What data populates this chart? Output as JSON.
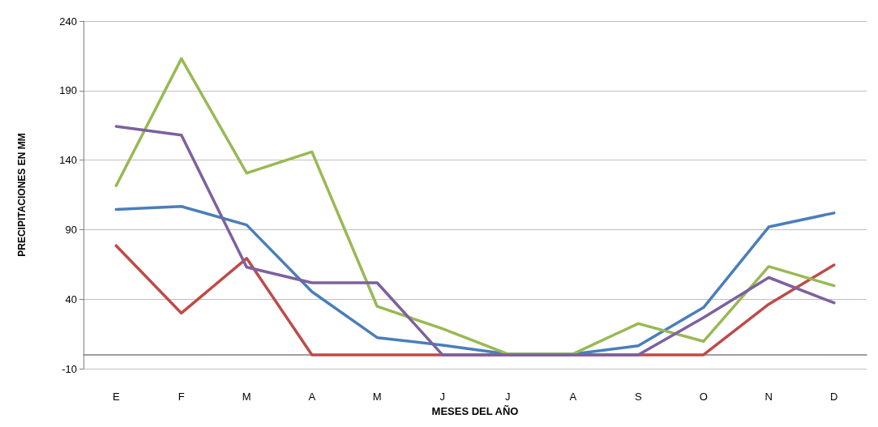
{
  "chart_data": {
    "type": "line",
    "xlabel": "MESES DEL AÑO",
    "ylabel": "PRECIPITACIONES EN MM",
    "categories": [
      "E",
      "F",
      "M",
      "A",
      "M",
      "J",
      "J",
      "A",
      "S",
      "O",
      "N",
      "D"
    ],
    "series": [
      {
        "color": "#4a7ebb",
        "values": [
          104.6,
          106.7,
          93.4,
          45.4,
          12.4,
          7,
          0.6,
          0.6,
          6.5,
          34,
          92,
          102
        ]
      },
      {
        "color": "#be4b48",
        "values": [
          78.5,
          30,
          69.4,
          0,
          0,
          0,
          0,
          0,
          0,
          0,
          36.4,
          64.6
        ]
      },
      {
        "color": "#98b954",
        "values": [
          121.6,
          213,
          130.7,
          146,
          34.8,
          18.8,
          0.6,
          0.6,
          22.5,
          9.7,
          63.5,
          49.7
        ]
      },
      {
        "color": "#7d60a0",
        "values": [
          164.3,
          158,
          63,
          51.8,
          51.8,
          0,
          0,
          0,
          0,
          26.8,
          55.6,
          37.4
        ]
      }
    ],
    "ylim": [
      -10,
      240
    ],
    "yticks": [
      -10,
      40,
      90,
      140,
      190,
      240
    ],
    "grid": "y",
    "marker": "none",
    "line_style": "solid"
  }
}
